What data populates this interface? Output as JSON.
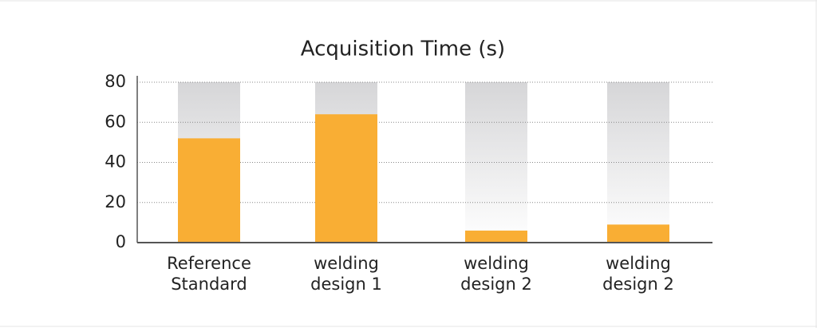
{
  "chart_data": {
    "type": "bar",
    "title": "Acquisition Time (s)",
    "categories": [
      "Reference Standard",
      "welding design 1",
      "welding design 2",
      "welding design 2"
    ],
    "values": [
      52,
      64,
      6,
      9
    ],
    "color": "#f9ae34",
    "ylim": [
      0,
      80
    ],
    "yticks": [
      0,
      20,
      40,
      60,
      80
    ],
    "grid": true
  }
}
